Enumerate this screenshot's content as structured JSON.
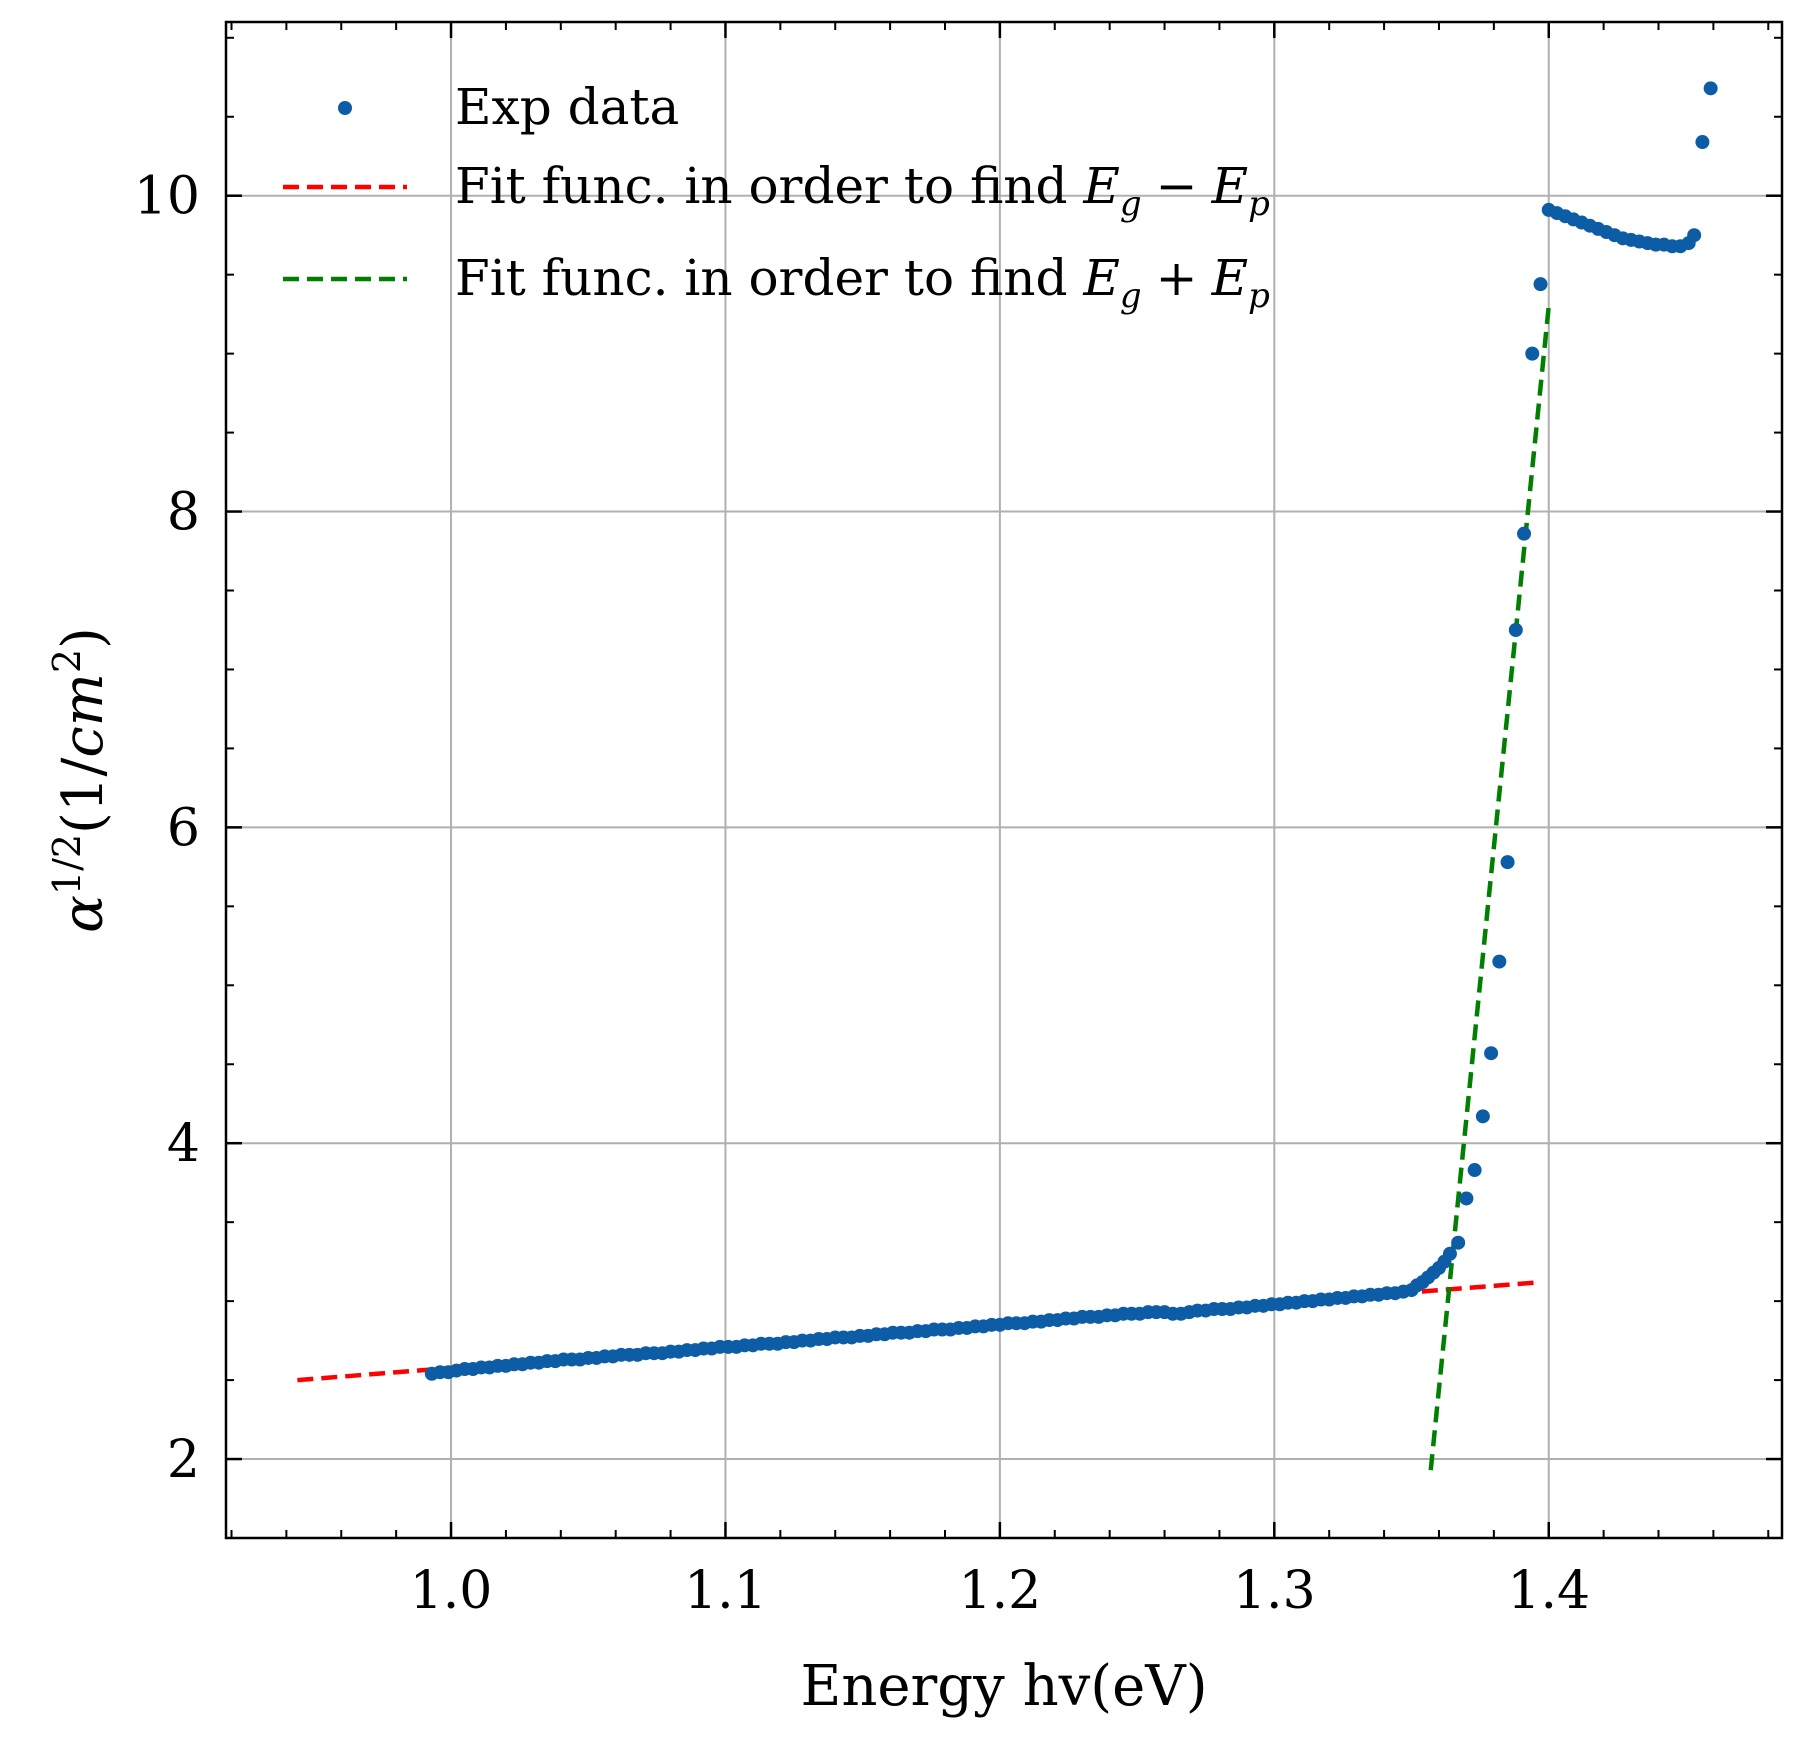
{
  "chart_data": {
    "type": "scatter",
    "xlabel": "Energy hv(eV)",
    "ylabel": {
      "base": "α",
      "exponent": "1/2",
      "unit_open": "(1/",
      "unit_var": "cm",
      "unit_exp": "2",
      "unit_close": ")"
    },
    "xlim": [
      0.918,
      1.485
    ],
    "ylim": [
      1.5,
      11.1
    ],
    "xticks": [
      1.0,
      1.1,
      1.2,
      1.3,
      1.4
    ],
    "xtick_labels": [
      "1.0",
      "1.1",
      "1.2",
      "1.3",
      "1.4"
    ],
    "yticks": [
      2,
      4,
      6,
      8,
      10
    ],
    "ytick_labels": [
      "2",
      "4",
      "6",
      "8",
      "10"
    ],
    "grid": true,
    "legend_position": "top-left",
    "legend": [
      {
        "label": "Exp data",
        "kind": "marker",
        "color": "#0C5DA5"
      },
      {
        "label": "Fit func. in order to find",
        "math_base": "E",
        "math_sub1": "g",
        "op": "−",
        "math_base2": "E",
        "math_sub2": "p",
        "kind": "dashed-line",
        "color": "#FF0000"
      },
      {
        "label": "Fit func. in order to find",
        "math_base": "E",
        "math_sub1": "g",
        "op": "+",
        "math_base2": "E",
        "math_sub2": "p",
        "kind": "dashed-line",
        "color": "#007F00"
      }
    ],
    "series": [
      {
        "name": "Exp data",
        "type": "scatter",
        "color": "#0C5DA5",
        "x": [
          0.993,
          0.996,
          0.999,
          1.002,
          1.005,
          1.008,
          1.011,
          1.014,
          1.017,
          1.02,
          1.023,
          1.026,
          1.029,
          1.032,
          1.035,
          1.038,
          1.041,
          1.044,
          1.047,
          1.05,
          1.053,
          1.056,
          1.059,
          1.062,
          1.065,
          1.068,
          1.071,
          1.074,
          1.077,
          1.08,
          1.083,
          1.086,
          1.089,
          1.092,
          1.095,
          1.098,
          1.101,
          1.104,
          1.107,
          1.11,
          1.113,
          1.116,
          1.119,
          1.122,
          1.125,
          1.128,
          1.131,
          1.134,
          1.137,
          1.14,
          1.143,
          1.146,
          1.149,
          1.152,
          1.155,
          1.158,
          1.161,
          1.164,
          1.167,
          1.17,
          1.173,
          1.176,
          1.179,
          1.182,
          1.185,
          1.188,
          1.191,
          1.194,
          1.197,
          1.2,
          1.203,
          1.206,
          1.209,
          1.212,
          1.215,
          1.218,
          1.221,
          1.224,
          1.227,
          1.23,
          1.233,
          1.236,
          1.239,
          1.242,
          1.245,
          1.248,
          1.251,
          1.254,
          1.257,
          1.26,
          1.263,
          1.266,
          1.269,
          1.272,
          1.275,
          1.278,
          1.281,
          1.284,
          1.287,
          1.29,
          1.293,
          1.296,
          1.299,
          1.302,
          1.305,
          1.308,
          1.311,
          1.314,
          1.317,
          1.32,
          1.323,
          1.326,
          1.329,
          1.332,
          1.335,
          1.338,
          1.341,
          1.344,
          1.347,
          1.35,
          1.352,
          1.354,
          1.356,
          1.358,
          1.36,
          1.362,
          1.364,
          1.367,
          1.37,
          1.373,
          1.376,
          1.379,
          1.382,
          1.385,
          1.388,
          1.391,
          1.394,
          1.397,
          1.4,
          1.403,
          1.406,
          1.409,
          1.412,
          1.415,
          1.418,
          1.421,
          1.424,
          1.427,
          1.43,
          1.433,
          1.436,
          1.439,
          1.442,
          1.445,
          1.448,
          1.451,
          1.453,
          1.456,
          1.459
        ],
        "y": [
          2.54,
          2.55,
          2.55,
          2.56,
          2.57,
          2.57,
          2.58,
          2.58,
          2.59,
          2.59,
          2.6,
          2.6,
          2.61,
          2.61,
          2.62,
          2.62,
          2.63,
          2.63,
          2.63,
          2.64,
          2.64,
          2.65,
          2.65,
          2.66,
          2.66,
          2.66,
          2.67,
          2.67,
          2.67,
          2.68,
          2.68,
          2.69,
          2.69,
          2.7,
          2.7,
          2.71,
          2.71,
          2.71,
          2.72,
          2.72,
          2.73,
          2.73,
          2.73,
          2.74,
          2.74,
          2.75,
          2.75,
          2.76,
          2.76,
          2.77,
          2.77,
          2.77,
          2.78,
          2.78,
          2.79,
          2.79,
          2.8,
          2.8,
          2.8,
          2.81,
          2.81,
          2.82,
          2.82,
          2.82,
          2.83,
          2.83,
          2.84,
          2.84,
          2.85,
          2.85,
          2.86,
          2.86,
          2.86,
          2.87,
          2.87,
          2.88,
          2.88,
          2.89,
          2.89,
          2.9,
          2.9,
          2.9,
          2.91,
          2.91,
          2.92,
          2.92,
          2.92,
          2.93,
          2.93,
          2.93,
          2.92,
          2.92,
          2.93,
          2.94,
          2.94,
          2.95,
          2.95,
          2.95,
          2.96,
          2.96,
          2.97,
          2.97,
          2.98,
          2.98,
          2.99,
          2.99,
          3.0,
          3.0,
          3.01,
          3.01,
          3.02,
          3.02,
          3.03,
          3.03,
          3.04,
          3.04,
          3.05,
          3.05,
          3.06,
          3.07,
          3.1,
          3.12,
          3.15,
          3.18,
          3.21,
          3.25,
          3.3,
          3.37,
          3.65,
          3.83,
          4.17,
          4.57,
          5.15,
          5.78,
          7.25,
          7.86,
          9.0,
          9.44,
          9.91,
          9.89,
          9.87,
          9.85,
          9.83,
          9.81,
          9.79,
          9.77,
          9.75,
          9.73,
          9.72,
          9.71,
          9.7,
          9.69,
          9.69,
          9.68,
          9.68,
          9.7,
          9.75,
          10.34,
          10.68
        ]
      },
      {
        "name": "Fit func. in order to find E_g - E_p",
        "type": "line",
        "style": "dashed",
        "color": "#FF0000",
        "x": [
          0.944,
          1.397
        ],
        "y": [
          2.5,
          3.12
        ]
      },
      {
        "name": "Fit func. in order to find E_g + E_p",
        "type": "line",
        "style": "dashed",
        "color": "#007F00",
        "x": [
          1.357,
          1.4
        ],
        "y": [
          1.93,
          9.3
        ]
      }
    ]
  }
}
